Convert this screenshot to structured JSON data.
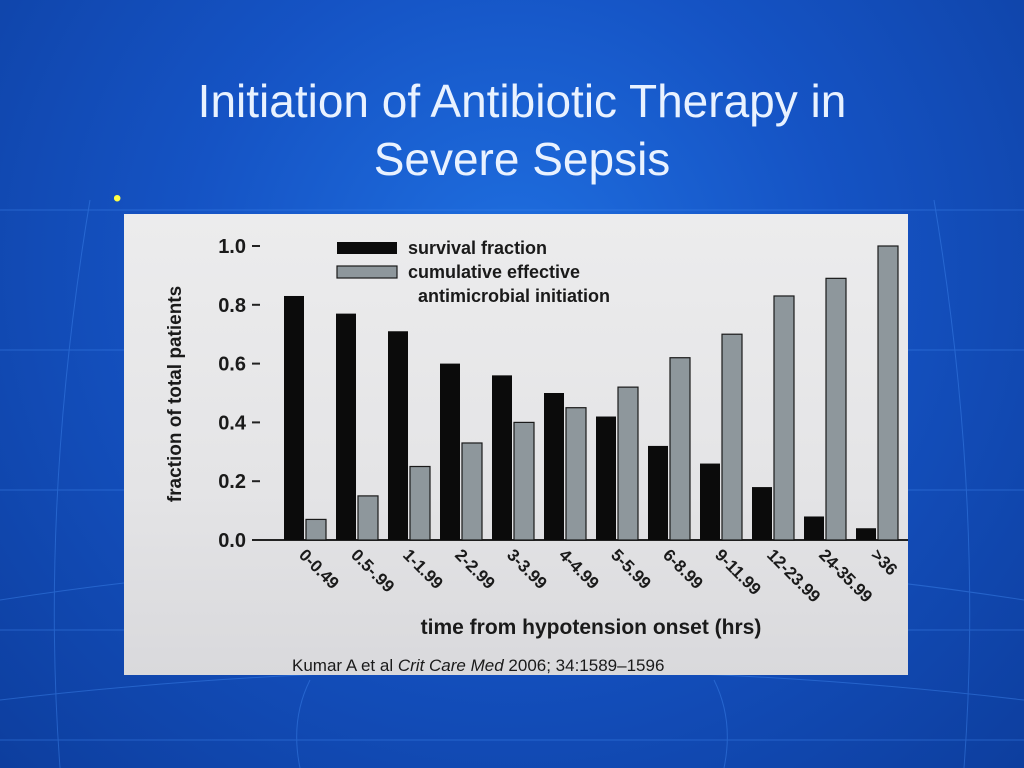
{
  "slide": {
    "title_line1": "Initiation of Antibiotic Therapy in",
    "title_line2": "Severe Sepsis",
    "bullet": "•",
    "citation": {
      "authors": "Kumar A et al",
      "journal": "Crit Care Med",
      "details": "2006; 34:1589–1596"
    }
  },
  "colors": {
    "background": "#1553c4",
    "title": "#e9f2ff",
    "bullet": "#ffff44",
    "survival": "#0b0b0b",
    "cumulative": "#8e979c"
  },
  "chart_data": {
    "type": "bar",
    "categories": [
      "0-0.49",
      "0.5-.99",
      "1-1.99",
      "2-2.99",
      "3-3.99",
      "4-4.99",
      "5-5.99",
      "6-8.99",
      "9-11.99",
      "12-23.99",
      "24-35.99",
      ">36"
    ],
    "series": [
      {
        "name": "survival fraction",
        "values": [
          0.83,
          0.77,
          0.71,
          0.6,
          0.56,
          0.5,
          0.42,
          0.32,
          0.26,
          0.18,
          0.08,
          0.04
        ]
      },
      {
        "name": "cumulative effective antimicrobial initiation",
        "values": [
          0.07,
          0.15,
          0.25,
          0.33,
          0.4,
          0.45,
          0.52,
          0.62,
          0.7,
          0.83,
          0.89,
          1.0
        ]
      }
    ],
    "legend_labels": [
      "survival fraction",
      "cumulative effective",
      "antimicrobial initiation"
    ],
    "xlabel": "time from hypotension onset (hrs)",
    "ylabel": "fraction of total patients",
    "yticks": [
      "0.0",
      "0.2",
      "0.4",
      "0.6",
      "0.8",
      "1.0"
    ],
    "ylim": [
      0,
      1.0
    ],
    "legend_position": "top-left",
    "grid": false
  }
}
